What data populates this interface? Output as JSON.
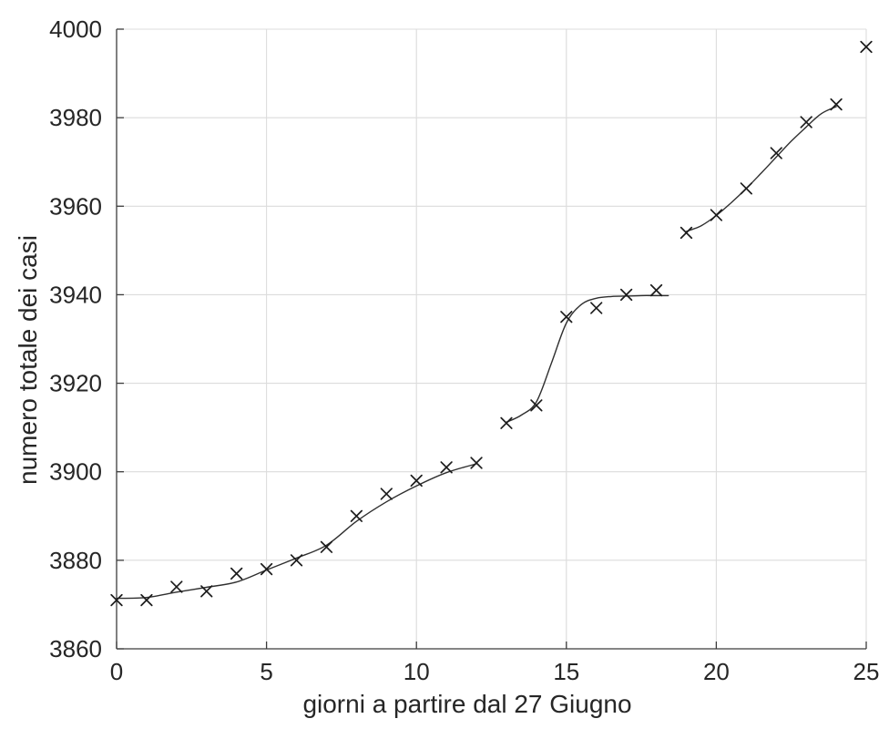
{
  "style": {
    "background": "#ffffff",
    "marker_color": "#1c1c1c",
    "curve_color": "#2f2f2f",
    "grid_color": "#dcdcdc",
    "axis_color": "#3c3c3c",
    "text_color": "#262626"
  },
  "chart_data": {
    "type": "scatter",
    "title": "",
    "xlabel": "giorni a partire dal 27 Giugno",
    "ylabel": "numero totale dei casi",
    "xlim": [
      0,
      25
    ],
    "ylim": [
      3860,
      4000
    ],
    "xticks": [
      0,
      5,
      10,
      15,
      20,
      25
    ],
    "yticks": [
      3860,
      3880,
      3900,
      3920,
      3940,
      3960,
      3980,
      4000
    ],
    "grid": true,
    "legend_position": "none",
    "marker": "x",
    "points": {
      "x": [
        0,
        1,
        2,
        3,
        4,
        5,
        6,
        7,
        8,
        9,
        10,
        11,
        12,
        13,
        14,
        15,
        16,
        17,
        18,
        19,
        20,
        21,
        22,
        23,
        24,
        25
      ],
      "y": [
        3871,
        3871,
        3874,
        3873,
        3877,
        3878,
        3880,
        3883,
        3890,
        3895,
        3898,
        3901,
        3902,
        3911,
        3915,
        3935,
        3937,
        3940,
        3941,
        3954,
        3958,
        3964,
        3972,
        3979,
        3983,
        3996
      ]
    },
    "fit_segments": [
      {
        "x": [
          0,
          1,
          2,
          3,
          4,
          5,
          6,
          7,
          8,
          9,
          10,
          11,
          12
        ],
        "y": [
          3871.4,
          3871.6,
          3872.8,
          3873.9,
          3875.1,
          3877.8,
          3880.5,
          3883.4,
          3888.8,
          3893.2,
          3896.8,
          3899.8,
          3901.8
        ]
      },
      {
        "x": [
          13,
          13.5,
          14,
          14.5,
          15,
          15.5,
          16,
          16.5,
          17,
          17.5,
          18,
          18.4
        ],
        "y": [
          3911.2,
          3912.8,
          3915.8,
          3924.5,
          3933.6,
          3937.8,
          3939.2,
          3939.6,
          3939.7,
          3939.8,
          3939.8,
          3939.8
        ]
      },
      {
        "x": [
          19,
          19.5,
          20,
          20.5,
          21,
          21.5,
          22,
          22.5,
          23,
          23.5,
          24
        ],
        "y": [
          3954.3,
          3955.6,
          3957.9,
          3960.8,
          3964.0,
          3967.5,
          3971.1,
          3974.7,
          3977.9,
          3980.9,
          3982.5
        ]
      }
    ]
  }
}
